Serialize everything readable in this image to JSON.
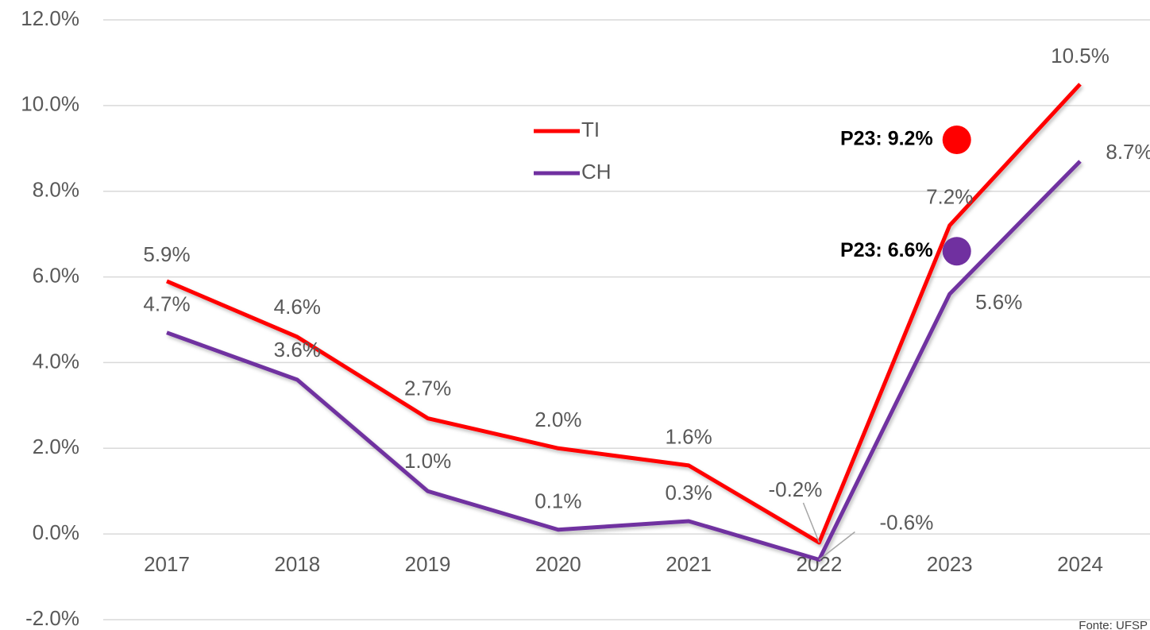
{
  "chart_data": {
    "type": "line",
    "categories": [
      "2017",
      "2018",
      "2019",
      "2020",
      "2021",
      "2022",
      "2023",
      "2024"
    ],
    "series": [
      {
        "name": "TI",
        "color": "#ff0000",
        "values": [
          5.9,
          4.6,
          2.7,
          2.0,
          1.6,
          -0.2,
          7.2,
          10.5
        ],
        "value_labels": [
          "5.9%",
          "4.6%",
          "2.7%",
          "2.0%",
          "1.6%",
          "-0.2%",
          "7.2%",
          "10.5%"
        ]
      },
      {
        "name": "CH",
        "color": "#7030a0",
        "values": [
          4.7,
          3.6,
          1.0,
          0.1,
          0.3,
          -0.6,
          5.6,
          8.7
        ],
        "value_labels": [
          "4.7%",
          "3.6%",
          "1.0%",
          "0.1%",
          "0.3%",
          "-0.6%",
          "5.6%",
          "8.7%"
        ]
      }
    ],
    "ylim": [
      -2,
      12
    ],
    "yticks": [
      {
        "value": -2,
        "label": "-2.0%"
      },
      {
        "value": 0,
        "label": "0.0%"
      },
      {
        "value": 2,
        "label": "2.0%"
      },
      {
        "value": 4,
        "label": "4.0%"
      },
      {
        "value": 6,
        "label": "6.0%"
      },
      {
        "value": 8,
        "label": "8.0%"
      },
      {
        "value": 10,
        "label": "10.0%"
      },
      {
        "value": 12,
        "label": "12.0%"
      }
    ],
    "grid": true,
    "annotations": [
      {
        "text": "P23: 9.2%",
        "category": "2023",
        "value": 9.2,
        "color": "#ff0000"
      },
      {
        "text": "P23: 6.6%",
        "category": "2023",
        "value": 6.6,
        "color": "#7030a0"
      }
    ],
    "source": "Fonte: UFSP"
  }
}
